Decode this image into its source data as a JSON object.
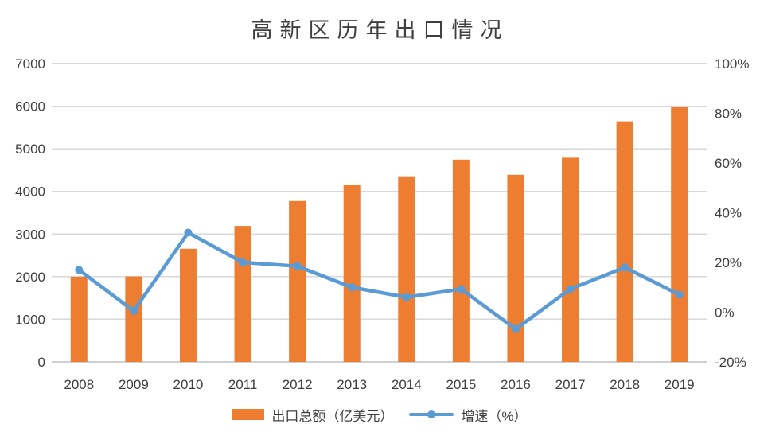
{
  "chart_data": {
    "type": "bar",
    "combo": "bar+line",
    "title": "高新区历年出口情况",
    "categories": [
      "2008",
      "2009",
      "2010",
      "2011",
      "2012",
      "2013",
      "2014",
      "2015",
      "2016",
      "2017",
      "2018",
      "2019"
    ],
    "series": [
      {
        "name": "出口总额（亿美元）",
        "type": "bar",
        "axis": "left",
        "color": "#ED7D31",
        "values": [
          2000,
          2005,
          2655,
          3190,
          3775,
          4150,
          4355,
          4745,
          4390,
          4790,
          5645,
          5990
        ]
      },
      {
        "name": "增速（%）",
        "type": "line",
        "axis": "right",
        "color": "#5B9BD5",
        "values": [
          17,
          0.5,
          32,
          20,
          18.5,
          10,
          6,
          9.3,
          -6.8,
          9.3,
          18,
          7
        ]
      }
    ],
    "left_axis": {
      "min": 0,
      "max": 7000,
      "step": 1000,
      "tick_labels": [
        "0",
        "1000",
        "2000",
        "3000",
        "4000",
        "5000",
        "6000",
        "7000"
      ]
    },
    "right_axis": {
      "min": -20,
      "max": 100,
      "step": 20,
      "tick_labels": [
        "-20%",
        "0%",
        "20%",
        "40%",
        "60%",
        "80%",
        "100%"
      ]
    },
    "grid": true,
    "legend_position": "bottom",
    "colors": {
      "bar": "#ED7D31",
      "line": "#5B9BD5",
      "gridline": "#D9D9D9",
      "axis_line": "#CFCFCF",
      "tick_text": "#3F3F3F",
      "title_text": "#3F3F3F",
      "background": "#FFFFFF"
    }
  }
}
